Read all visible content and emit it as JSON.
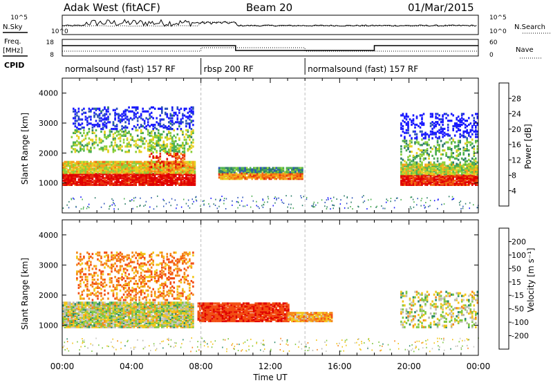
{
  "header": {
    "station": "Adak West (fitACF)",
    "beam": "Beam 20",
    "date": "01/Mar/2015"
  },
  "side_labels": {
    "nsky": "N.Sky",
    "nsearch": "N.Search",
    "freq": "Freq.",
    "freq_unit": "[MHz]",
    "nave": "Nave",
    "cpid": "CPID"
  },
  "noise_axis": {
    "left_ticks": [
      "10^5",
      "10^0"
    ],
    "right_ticks": [
      "10^5",
      "10^0"
    ]
  },
  "freq_axis": {
    "left_ticks": [
      "18",
      "8"
    ],
    "right_ticks": [
      "60",
      "0"
    ]
  },
  "cpid_segments": [
    {
      "label": "normalsound (fast) 157 RF",
      "start_h": 0,
      "end_h": 8
    },
    {
      "label": "rbsp 200 RF",
      "start_h": 8,
      "end_h": 14
    },
    {
      "label": "normalsound (fast) 157 RF",
      "start_h": 14,
      "end_h": 24
    }
  ],
  "colorbars": {
    "power": {
      "label": "Power [dB]",
      "ticks": [
        "4",
        "8",
        "12",
        "16",
        "20",
        "24",
        "28"
      ],
      "colors": [
        "#1a1aff",
        "#2c54b8",
        "#2e7d6a",
        "#4caf50",
        "#8ccf3a",
        "#e6d020",
        "#f5a21a",
        "#f26a10",
        "#e8300c",
        "#e00000"
      ]
    },
    "velocity": {
      "label": "Velocity [m s⁻¹]",
      "ticks": [
        "200",
        "100",
        "50",
        "15",
        "-15",
        "-50",
        "-100",
        "-200"
      ],
      "colors": [
        "#1a2aa0",
        "#2e6abf",
        "#2c8a6a",
        "#7fc742",
        "#b8b8b0",
        "#c9c9c2",
        "#f2c51a",
        "#f5871a",
        "#f24d12",
        "#e00000"
      ]
    }
  },
  "chart_data": [
    {
      "type": "heatmap",
      "title": "Power",
      "xlabel": "Time UT",
      "ylabel": "Slant Range [km]",
      "xlim": [
        0,
        24
      ],
      "ylim": [
        0,
        4500
      ],
      "x_ticks": [
        "00:00",
        "04:00",
        "08:00",
        "12:00",
        "16:00",
        "20:00",
        "00:00"
      ],
      "y_ticks": [
        "1000",
        "2000",
        "3000",
        "4000"
      ],
      "regions": [
        {
          "t_start": 0.0,
          "t_end": 7.6,
          "r_low": 900,
          "r_high": 1700,
          "value_dB": 24
        },
        {
          "t_start": 0.5,
          "t_end": 7.5,
          "r_low": 2000,
          "r_high": 3500,
          "value_dB": 8
        },
        {
          "t_start": 5.0,
          "t_end": 7.0,
          "r_low": 1400,
          "r_high": 2500,
          "value_dB": 20
        },
        {
          "t_start": 9.0,
          "t_end": 13.8,
          "r_low": 1100,
          "r_high": 1500,
          "value_dB": 16
        },
        {
          "t_start": 19.5,
          "t_end": 24.0,
          "r_low": 900,
          "r_high": 1600,
          "value_dB": 22
        },
        {
          "t_start": 19.5,
          "t_end": 24.0,
          "r_low": 1600,
          "r_high": 3300,
          "value_dB": 6
        }
      ]
    },
    {
      "type": "heatmap",
      "title": "Velocity",
      "xlabel": "Time UT",
      "ylabel": "Slant Range [km]",
      "xlim": [
        0,
        24
      ],
      "ylim": [
        0,
        4500
      ],
      "x_ticks": [
        "00:00",
        "04:00",
        "08:00",
        "12:00",
        "16:00",
        "20:00",
        "00:00"
      ],
      "y_ticks": [
        "1000",
        "2000",
        "3000",
        "4000"
      ],
      "regions": [
        {
          "t_start": 0.0,
          "t_end": 7.5,
          "r_low": 900,
          "r_high": 1750,
          "value_ms": 0
        },
        {
          "t_start": 0.8,
          "t_end": 7.5,
          "r_low": 1800,
          "r_high": 3400,
          "value_ms": -80
        },
        {
          "t_start": 7.8,
          "t_end": 13.0,
          "r_low": 1100,
          "r_high": 1700,
          "value_ms": -180
        },
        {
          "t_start": 13.0,
          "t_end": 15.5,
          "r_low": 1100,
          "r_high": 1400,
          "value_ms": -60
        },
        {
          "t_start": 19.5,
          "t_end": 24.0,
          "r_low": 900,
          "r_high": 2100,
          "value_ms": 0
        }
      ]
    }
  ]
}
